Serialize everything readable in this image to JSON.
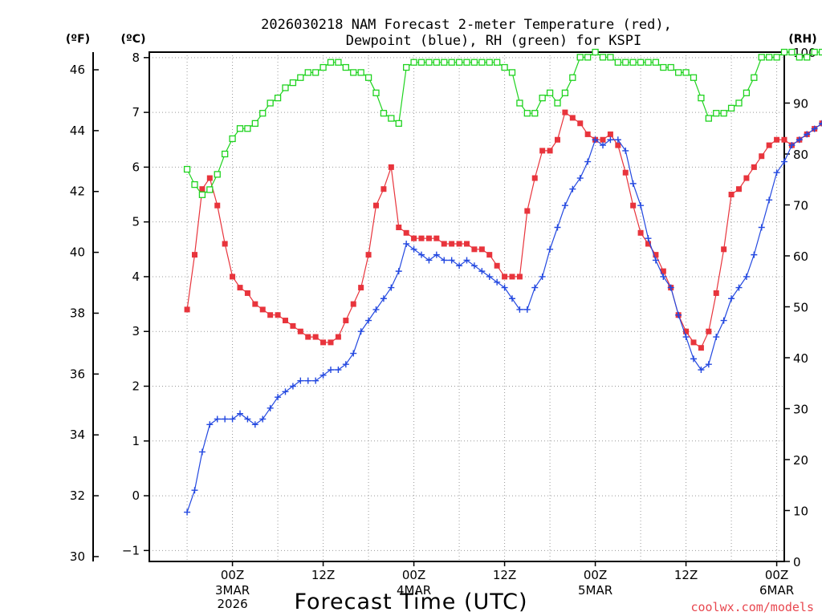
{
  "chart_data": {
    "type": "line",
    "title": [
      "2026030218 NAM Forecast 2-meter Temperature (red),",
      "Dewpoint (blue), RH (green) for KSPI"
    ],
    "xlabel": "Forecast Time (UTC)",
    "credit": "coolwx.com/models",
    "units": {
      "f": "(ºF)",
      "c": "(ºC)",
      "rh": "(RH)"
    },
    "x_range_hours": [
      -5,
      79
    ],
    "x_ticks": [
      {
        "hour": 6,
        "label": "00Z",
        "sub": [
          "3MAR",
          "2026"
        ]
      },
      {
        "hour": 18,
        "label": "12Z",
        "sub": []
      },
      {
        "hour": 30,
        "label": "00Z",
        "sub": [
          "4MAR"
        ]
      },
      {
        "hour": 42,
        "label": "12Z",
        "sub": []
      },
      {
        "hour": 54,
        "label": "00Z",
        "sub": [
          "5MAR"
        ]
      },
      {
        "hour": 66,
        "label": "12Z",
        "sub": []
      },
      {
        "hour": 78,
        "label": "00Z",
        "sub": [
          "6MAR"
        ]
      }
    ],
    "ylim_c": [
      -1.2,
      8.1
    ],
    "y_ticks_c": [
      -1,
      0,
      1,
      2,
      3,
      4,
      5,
      6,
      7,
      8
    ],
    "y_ticks_f": [
      30,
      32,
      34,
      36,
      38,
      40,
      42,
      44,
      46
    ],
    "ylim_rh": [
      0,
      100
    ],
    "y_ticks_rh": [
      0,
      10,
      20,
      30,
      40,
      50,
      60,
      70,
      80,
      90,
      100
    ],
    "x": [
      0,
      1,
      2,
      3,
      4,
      5,
      6,
      7,
      8,
      9,
      10,
      11,
      12,
      13,
      14,
      15,
      16,
      17,
      18,
      19,
      20,
      21,
      22,
      23,
      24,
      25,
      26,
      27,
      28,
      29,
      30,
      31,
      32,
      33,
      34,
      35,
      36,
      37,
      38,
      39,
      40,
      41,
      42,
      43,
      44,
      45,
      46,
      47,
      48,
      49,
      50,
      51,
      52,
      53,
      54,
      55,
      56,
      57,
      58,
      59,
      60,
      61,
      62,
      63,
      64,
      65,
      66,
      67,
      68,
      69,
      70,
      71,
      72,
      73,
      74,
      75,
      76,
      77,
      78,
      79,
      80,
      81,
      82,
      83,
      84
    ],
    "series": [
      {
        "name": "Temperature",
        "units": "C",
        "color": "#e8343c",
        "marker": "filled-square",
        "values": [
          3.4,
          4.4,
          5.6,
          5.8,
          5.3,
          4.6,
          4.0,
          3.8,
          3.7,
          3.5,
          3.4,
          3.3,
          3.3,
          3.2,
          3.1,
          3.0,
          2.9,
          2.9,
          2.8,
          2.8,
          2.9,
          3.2,
          3.5,
          3.8,
          4.4,
          5.3,
          5.6,
          6.0,
          4.9,
          4.8,
          4.7,
          4.7,
          4.7,
          4.7,
          4.6,
          4.6,
          4.6,
          4.6,
          4.5,
          4.5,
          4.4,
          4.2,
          4.0,
          4.0,
          4.0,
          5.2,
          5.8,
          6.3,
          6.3,
          6.5,
          7.0,
          6.9,
          6.8,
          6.6,
          6.5,
          6.5,
          6.6,
          6.4,
          5.9,
          5.3,
          4.8,
          4.6,
          4.4,
          4.1,
          3.8,
          3.3,
          3.0,
          2.8,
          2.7,
          3.0,
          3.7,
          4.5,
          5.5,
          5.6,
          5.8,
          6.0,
          6.2,
          6.4,
          6.5,
          6.5,
          6.4,
          6.5,
          6.6,
          6.7,
          6.8
        ]
      },
      {
        "name": "Dewpoint",
        "units": "C",
        "color": "#2348e0",
        "marker": "plus",
        "values": [
          -0.3,
          0.1,
          0.8,
          1.3,
          1.4,
          1.4,
          1.4,
          1.5,
          1.4,
          1.3,
          1.4,
          1.6,
          1.8,
          1.9,
          2.0,
          2.1,
          2.1,
          2.1,
          2.2,
          2.3,
          2.3,
          2.4,
          2.6,
          3.0,
          3.2,
          3.4,
          3.6,
          3.8,
          4.1,
          4.6,
          4.5,
          4.4,
          4.3,
          4.4,
          4.3,
          4.3,
          4.2,
          4.3,
          4.2,
          4.1,
          4.0,
          3.9,
          3.8,
          3.6,
          3.4,
          3.4,
          3.8,
          4.0,
          4.5,
          4.9,
          5.3,
          5.6,
          5.8,
          6.1,
          6.5,
          6.4,
          6.5,
          6.5,
          6.3,
          5.7,
          5.3,
          4.7,
          4.3,
          4.0,
          3.8,
          3.3,
          2.9,
          2.5,
          2.3,
          2.4,
          2.9,
          3.2,
          3.6,
          3.8,
          4.0,
          4.4,
          4.9,
          5.4,
          5.9,
          6.1,
          6.4,
          6.5,
          6.6,
          6.7,
          6.8
        ]
      },
      {
        "name": "RH",
        "units": "%",
        "color": "#1fd31f",
        "marker": "open-square",
        "values": [
          77,
          74,
          72,
          73,
          76,
          80,
          83,
          85,
          85,
          86,
          88,
          90,
          91,
          93,
          94,
          95,
          96,
          96,
          97,
          98,
          98,
          97,
          96,
          96,
          95,
          92,
          88,
          87,
          86,
          97,
          98,
          98,
          98,
          98,
          98,
          98,
          98,
          98,
          98,
          98,
          98,
          98,
          97,
          96,
          90,
          88,
          88,
          91,
          92,
          90,
          92,
          95,
          99,
          99,
          100,
          99,
          99,
          98,
          98,
          98,
          98,
          98,
          98,
          97,
          97,
          96,
          96,
          95,
          91,
          87,
          88,
          88,
          89,
          90,
          92,
          95,
          99,
          99,
          99,
          100,
          100,
          99,
          99,
          100,
          100
        ]
      }
    ]
  }
}
